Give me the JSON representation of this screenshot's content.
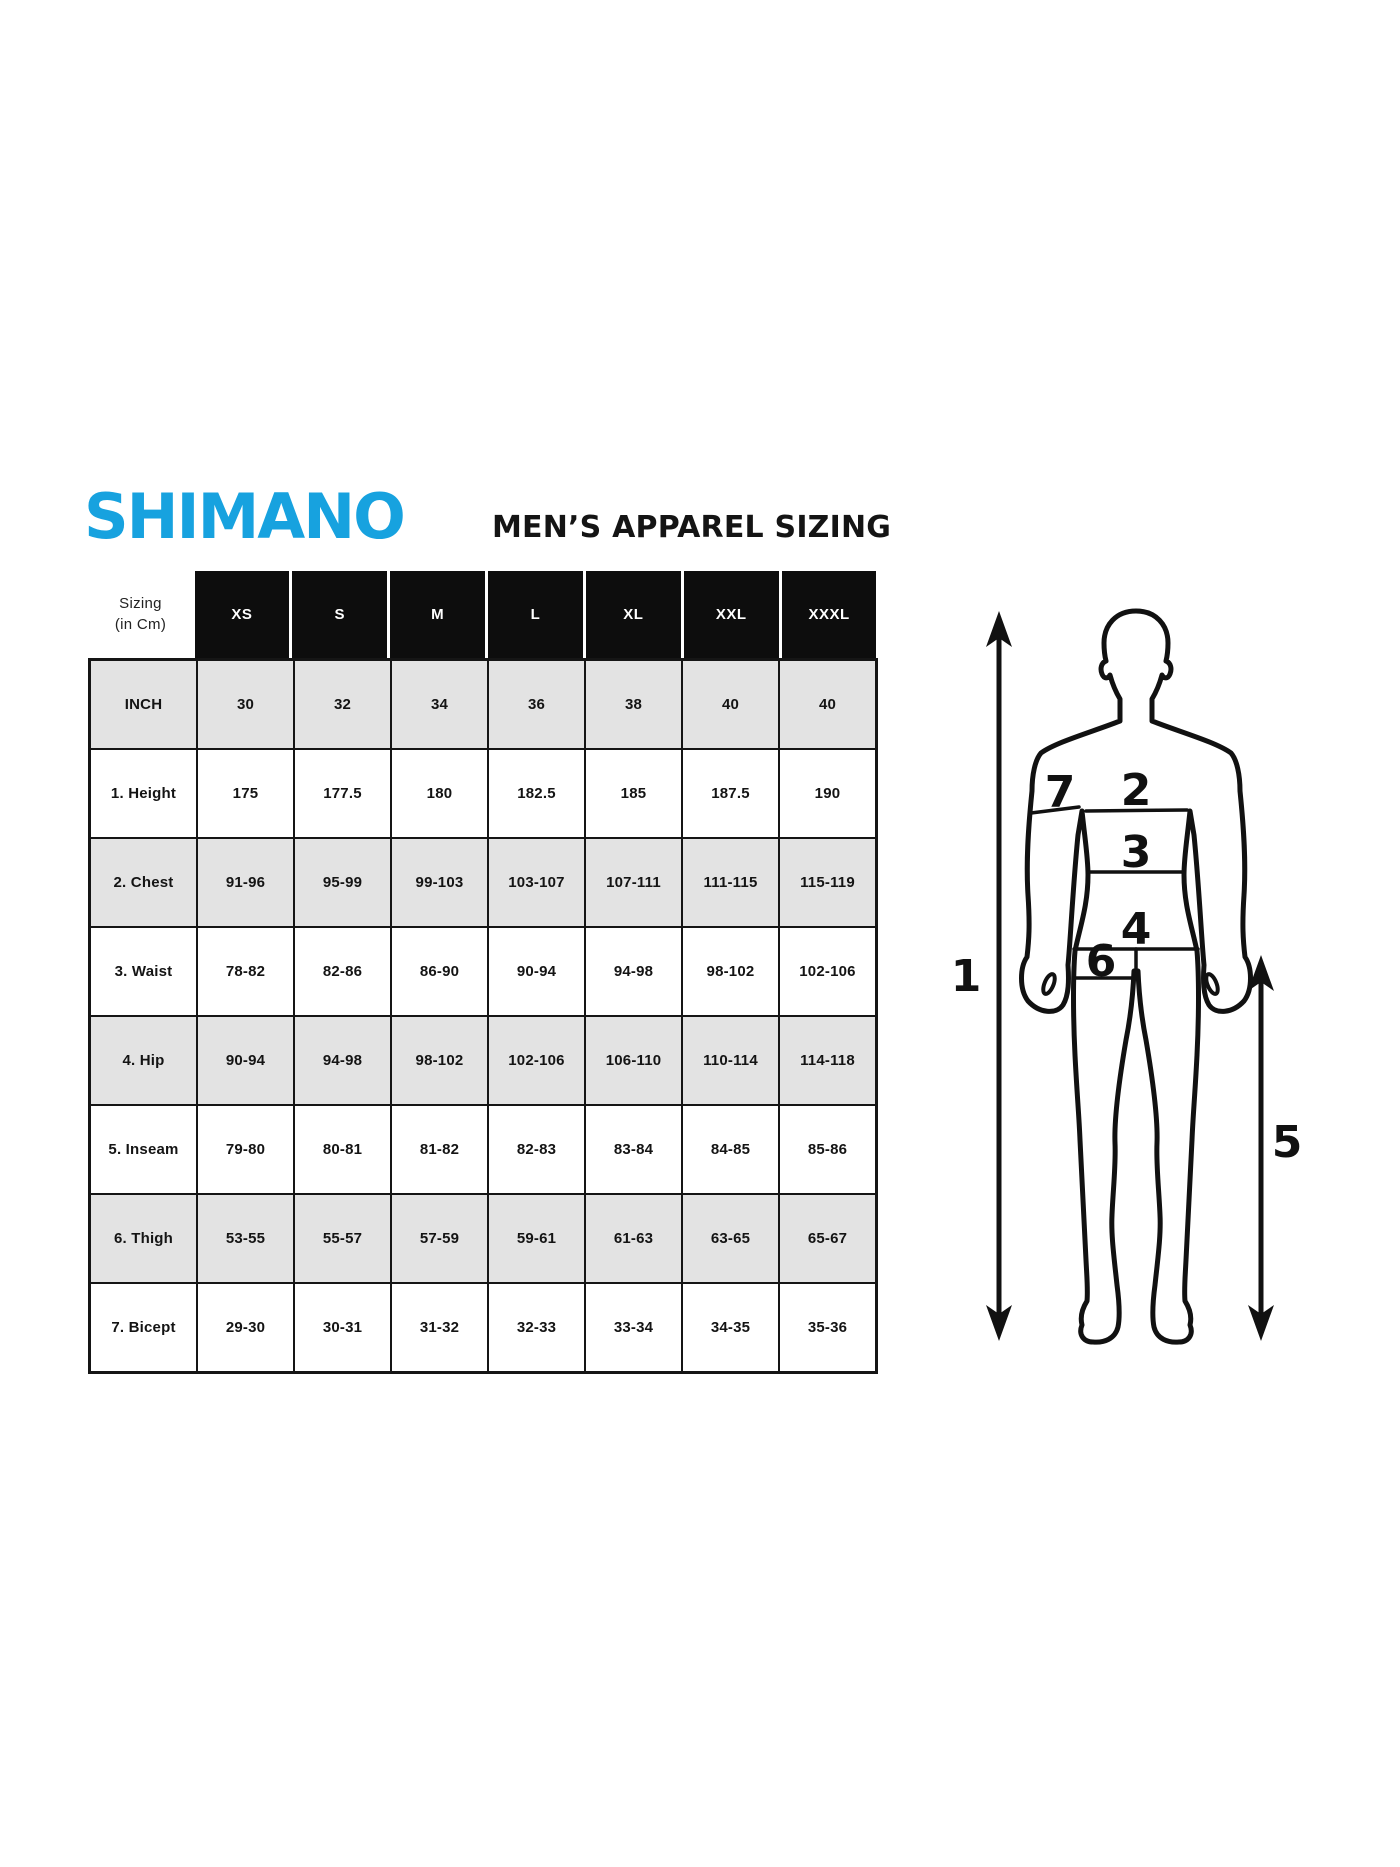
{
  "header": {
    "logo_text": "SHIMANO",
    "title": "MEN’S APPAREL SIZING"
  },
  "chart_data": {
    "type": "table",
    "title": "MEN’S APPAREL SIZING",
    "corner_label": [
      "Sizing",
      "(in Cm)"
    ],
    "size_columns": [
      "XS",
      "S",
      "M",
      "L",
      "XL",
      "XXL",
      "XXXL"
    ],
    "rows": [
      {
        "label": "INCH",
        "shaded": true,
        "values": [
          "30",
          "32",
          "34",
          "36",
          "38",
          "40",
          "40"
        ]
      },
      {
        "label": "1. Height",
        "shaded": false,
        "values": [
          "175",
          "177.5",
          "180",
          "182.5",
          "185",
          "187.5",
          "190"
        ]
      },
      {
        "label": "2. Chest",
        "shaded": true,
        "values": [
          "91-96",
          "95-99",
          "99-103",
          "103-107",
          "107-111",
          "111-115",
          "115-119"
        ]
      },
      {
        "label": "3. Waist",
        "shaded": false,
        "values": [
          "78-82",
          "82-86",
          "86-90",
          "90-94",
          "94-98",
          "98-102",
          "102-106"
        ]
      },
      {
        "label": "4. Hip",
        "shaded": true,
        "values": [
          "90-94",
          "94-98",
          "98-102",
          "102-106",
          "106-110",
          "110-114",
          "114-118"
        ]
      },
      {
        "label": "5. Inseam",
        "shaded": false,
        "values": [
          "79-80",
          "80-81",
          "81-82",
          "82-83",
          "83-84",
          "84-85",
          "85-86"
        ]
      },
      {
        "label": "6. Thigh",
        "shaded": true,
        "values": [
          "53-55",
          "55-57",
          "57-59",
          "59-61",
          "61-63",
          "63-65",
          "65-67"
        ]
      },
      {
        "label": "7. Bicept",
        "shaded": false,
        "values": [
          "29-30",
          "30-31",
          "31-32",
          "32-33",
          "33-34",
          "34-35",
          "35-36"
        ]
      }
    ]
  },
  "diagram": {
    "labels": [
      "1",
      "2",
      "3",
      "4",
      "5",
      "6",
      "7"
    ],
    "label_meanings": [
      "height",
      "chest",
      "waist",
      "hip",
      "inseam",
      "thigh",
      "bicep"
    ]
  },
  "colors": {
    "logo_blue": "#17a2df",
    "header_cell_bg": "#0d0d0d",
    "header_cell_text": "#ffffff",
    "shaded_row_bg": "#e3e3e3",
    "border": "#151515",
    "page_bg": "#ffffff"
  }
}
